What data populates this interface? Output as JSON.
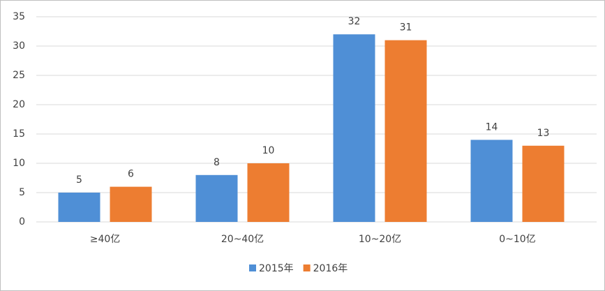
{
  "chart_data": {
    "type": "bar",
    "categories": [
      "≥40亿",
      "20~40亿",
      "10~20亿",
      "0~10亿"
    ],
    "series": [
      {
        "name": "2015年",
        "color": "#4f8fd6",
        "values": [
          5,
          8,
          32,
          14
        ]
      },
      {
        "name": "2016年",
        "color": "#ed7d31",
        "values": [
          6,
          10,
          31,
          13
        ]
      }
    ],
    "ylim": [
      0,
      35
    ],
    "yticks": [
      0,
      5,
      10,
      15,
      20,
      25,
      30,
      35
    ],
    "grid": true,
    "legend": "bottom"
  }
}
